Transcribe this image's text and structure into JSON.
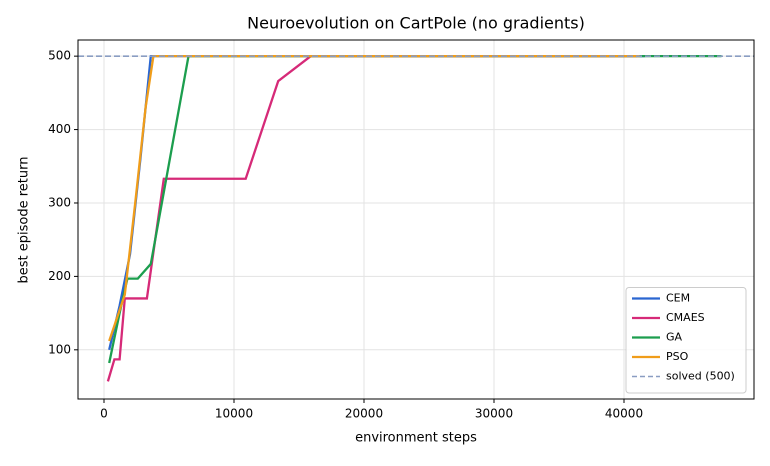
{
  "chart_data": {
    "type": "line",
    "title": "Neuroevolution on CartPole (no gradients)",
    "xlabel": "environment steps",
    "ylabel": "best episode return",
    "xlim": [
      -2000,
      50000
    ],
    "xticks": [
      0,
      10000,
      20000,
      30000,
      40000
    ],
    "ylim": [
      33,
      522
    ],
    "yticks": [
      100,
      200,
      300,
      400,
      500
    ],
    "grid": true,
    "legend": "lower right",
    "series": [
      {
        "name": "CEM",
        "color": "#2a66d1",
        "x": [
          400,
          1200,
          2000,
          2800,
          3600,
          41600
        ],
        "values": [
          100,
          160,
          230,
          360,
          500,
          500
        ]
      },
      {
        "name": "CMAES",
        "color": "#d62a78",
        "x": [
          300,
          800,
          1200,
          1600,
          3300,
          4600,
          10900,
          13400,
          15900,
          41000
        ],
        "values": [
          57,
          87,
          87,
          170,
          170,
          333,
          333,
          466,
          500,
          500
        ]
      },
      {
        "name": "GA",
        "color": "#1c9e4e",
        "x": [
          400,
          1200,
          1800,
          2600,
          3600,
          6500,
          47500
        ],
        "values": [
          82,
          150,
          197,
          197,
          217,
          500,
          500
        ]
      },
      {
        "name": "PSO",
        "color": "#f09d1a",
        "x": [
          400,
          1600,
          2400,
          3200,
          3800,
          41200
        ],
        "values": [
          112,
          175,
          300,
          430,
          500,
          500
        ]
      }
    ],
    "hline": {
      "name": "solved (500)",
      "value": 500,
      "color": "#8a9dc2"
    }
  }
}
